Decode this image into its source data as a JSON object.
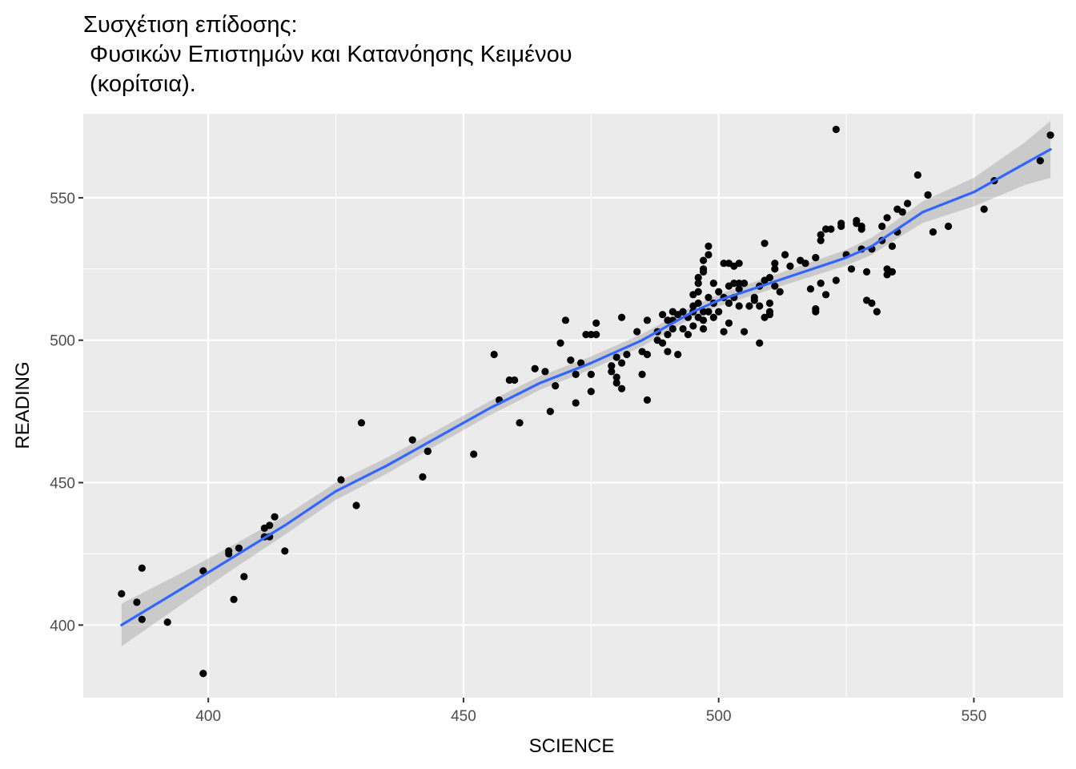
{
  "chart_data": {
    "type": "scatter",
    "title_lines": [
      "Συσχέτιση επίδοσης:",
      " Φυσικών Επιστημών και Κατανόησης Κειμένου",
      " (κορίτσια)."
    ],
    "xlabel": "SCIENCE",
    "ylabel": "READING",
    "xlim": [
      375.5,
      567.5
    ],
    "ylim": [
      374.5,
      579.5
    ],
    "x_ticks": [
      400,
      450,
      500,
      550
    ],
    "x_minor": [
      425,
      475,
      525
    ],
    "y_ticks": [
      400,
      450,
      500,
      550
    ],
    "y_minor": [
      425,
      475,
      525
    ],
    "grid": true,
    "colors": {
      "panel": "#ebebeb",
      "grid": "#ffffff",
      "point": "#000000",
      "smooth_line": "#3366ff",
      "confidence_band": "#999999"
    },
    "points": [
      [
        383,
        411
      ],
      [
        386,
        408
      ],
      [
        387,
        402
      ],
      [
        387,
        420
      ],
      [
        392,
        401
      ],
      [
        399,
        383
      ],
      [
        399,
        419
      ],
      [
        404,
        426
      ],
      [
        404,
        425
      ],
      [
        405,
        409
      ],
      [
        406,
        427
      ],
      [
        407,
        417
      ],
      [
        411,
        434
      ],
      [
        411,
        431
      ],
      [
        412,
        435
      ],
      [
        412,
        431
      ],
      [
        413,
        438
      ],
      [
        415,
        426
      ],
      [
        426,
        451
      ],
      [
        429,
        442
      ],
      [
        430,
        471
      ],
      [
        440,
        465
      ],
      [
        442,
        452
      ],
      [
        443,
        461
      ],
      [
        443,
        461
      ],
      [
        452,
        460
      ],
      [
        456,
        495
      ],
      [
        457,
        479
      ],
      [
        459,
        486
      ],
      [
        460,
        486
      ],
      [
        461,
        471
      ],
      [
        464,
        490
      ],
      [
        466,
        489
      ],
      [
        467,
        475
      ],
      [
        468,
        484
      ],
      [
        469,
        499
      ],
      [
        470,
        507
      ],
      [
        471,
        493
      ],
      [
        472,
        478
      ],
      [
        472,
        488
      ],
      [
        473,
        492
      ],
      [
        474,
        502
      ],
      [
        475,
        502
      ],
      [
        475,
        488
      ],
      [
        475,
        482
      ],
      [
        476,
        506
      ],
      [
        476,
        502
      ],
      [
        479,
        491
      ],
      [
        479,
        489
      ],
      [
        480,
        494
      ],
      [
        480,
        487
      ],
      [
        480,
        485
      ],
      [
        481,
        492
      ],
      [
        481,
        483
      ],
      [
        481,
        508
      ],
      [
        482,
        495
      ],
      [
        484,
        503
      ],
      [
        485,
        488
      ],
      [
        485,
        496
      ],
      [
        486,
        495
      ],
      [
        486,
        479
      ],
      [
        486,
        507
      ],
      [
        488,
        503
      ],
      [
        488,
        500
      ],
      [
        489,
        509
      ],
      [
        489,
        499
      ],
      [
        490,
        496
      ],
      [
        490,
        502
      ],
      [
        490,
        507
      ],
      [
        491,
        510
      ],
      [
        491,
        507
      ],
      [
        491,
        504
      ],
      [
        492,
        495
      ],
      [
        492,
        509
      ],
      [
        493,
        504
      ],
      [
        493,
        510
      ],
      [
        494,
        508
      ],
      [
        494,
        502
      ],
      [
        495,
        516
      ],
      [
        495,
        510
      ],
      [
        495,
        505
      ],
      [
        495,
        512
      ],
      [
        496,
        520
      ],
      [
        496,
        517
      ],
      [
        496,
        522
      ],
      [
        496,
        508
      ],
      [
        496,
        513
      ],
      [
        497,
        528
      ],
      [
        497,
        525
      ],
      [
        497,
        524
      ],
      [
        497,
        507
      ],
      [
        497,
        504
      ],
      [
        497,
        510
      ],
      [
        498,
        533
      ],
      [
        498,
        530
      ],
      [
        498,
        515
      ],
      [
        498,
        510
      ],
      [
        499,
        520
      ],
      [
        499,
        513
      ],
      [
        499,
        508
      ],
      [
        500,
        517
      ],
      [
        500,
        510
      ],
      [
        501,
        527
      ],
      [
        501,
        515
      ],
      [
        501,
        503
      ],
      [
        502,
        506
      ],
      [
        502,
        519
      ],
      [
        502,
        527
      ],
      [
        502,
        513
      ],
      [
        503,
        526
      ],
      [
        503,
        520
      ],
      [
        503,
        515
      ],
      [
        504,
        527
      ],
      [
        504,
        520
      ],
      [
        504,
        518
      ],
      [
        504,
        512
      ],
      [
        505,
        503
      ],
      [
        505,
        520
      ],
      [
        506,
        512
      ],
      [
        507,
        515
      ],
      [
        507,
        514
      ],
      [
        508,
        519
      ],
      [
        508,
        499
      ],
      [
        508,
        512
      ],
      [
        509,
        508
      ],
      [
        509,
        534
      ],
      [
        509,
        521
      ],
      [
        510,
        510
      ],
      [
        510,
        509
      ],
      [
        510,
        513
      ],
      [
        510,
        522
      ],
      [
        511,
        527
      ],
      [
        511,
        525
      ],
      [
        511,
        519
      ],
      [
        512,
        517
      ],
      [
        513,
        530
      ],
      [
        514,
        526
      ],
      [
        516,
        528
      ],
      [
        517,
        527
      ],
      [
        518,
        518
      ],
      [
        519,
        529
      ],
      [
        519,
        511
      ],
      [
        519,
        510
      ],
      [
        520,
        537
      ],
      [
        520,
        535
      ],
      [
        520,
        520
      ],
      [
        521,
        516
      ],
      [
        521,
        539
      ],
      [
        522,
        539
      ],
      [
        523,
        521
      ],
      [
        523,
        574
      ],
      [
        524,
        541
      ],
      [
        524,
        540
      ],
      [
        525,
        530
      ],
      [
        526,
        525
      ],
      [
        527,
        542
      ],
      [
        527,
        541
      ],
      [
        528,
        540
      ],
      [
        528,
        539
      ],
      [
        528,
        532
      ],
      [
        529,
        524
      ],
      [
        529,
        514
      ],
      [
        530,
        532
      ],
      [
        530,
        513
      ],
      [
        531,
        510
      ],
      [
        532,
        535
      ],
      [
        532,
        540
      ],
      [
        533,
        543
      ],
      [
        533,
        525
      ],
      [
        533,
        523
      ],
      [
        534,
        533
      ],
      [
        534,
        524
      ],
      [
        535,
        538
      ],
      [
        535,
        546
      ],
      [
        536,
        545
      ],
      [
        537,
        548
      ],
      [
        539,
        558
      ],
      [
        541,
        551
      ],
      [
        541,
        551
      ],
      [
        542,
        538
      ],
      [
        545,
        540
      ],
      [
        552,
        546
      ],
      [
        554,
        556
      ],
      [
        563,
        563
      ],
      [
        565,
        572
      ]
    ],
    "smooth_line": [
      [
        383,
        400
      ],
      [
        395,
        413
      ],
      [
        405,
        424
      ],
      [
        415,
        435
      ],
      [
        425,
        447
      ],
      [
        435,
        456
      ],
      [
        445,
        466
      ],
      [
        455,
        476
      ],
      [
        465,
        485
      ],
      [
        475,
        492
      ],
      [
        485,
        500
      ],
      [
        490,
        505
      ],
      [
        495,
        510
      ],
      [
        500,
        514
      ],
      [
        505,
        517
      ],
      [
        510,
        520
      ],
      [
        515,
        523
      ],
      [
        520,
        526
      ],
      [
        525,
        529
      ],
      [
        530,
        533
      ],
      [
        535,
        539
      ],
      [
        540,
        545
      ],
      [
        550,
        552
      ],
      [
        560,
        562
      ],
      [
        565,
        567
      ]
    ],
    "band_halfwidth": [
      7.5,
      5.5,
      4.2,
      3.3,
      3,
      2.8,
      2.6,
      2.5,
      2.4,
      2.3,
      2.2,
      2.1,
      2,
      2.1,
      2.2,
      2.3,
      2.4,
      2.6,
      2.8,
      3,
      3.3,
      3.8,
      5,
      7.5,
      10
    ]
  }
}
